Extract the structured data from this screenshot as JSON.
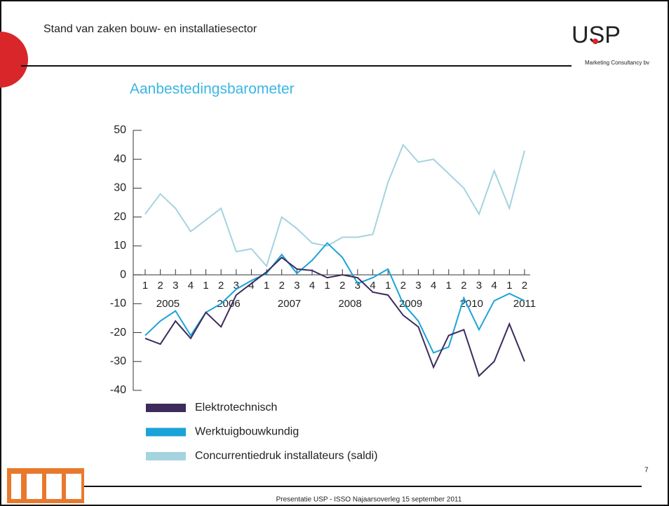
{
  "header": {
    "title": "Stand van zaken bouw- en installatiesector",
    "logo": "USP",
    "logo_subtitle": "Marketing Consultancy bv"
  },
  "chart_data": {
    "type": "line",
    "title": "Aanbestedingsbarometer",
    "categories": [
      "1",
      "2",
      "3",
      "4",
      "1",
      "2",
      "3",
      "4",
      "1",
      "2",
      "3",
      "4",
      "1",
      "2",
      "3",
      "4",
      "1",
      "2",
      "3",
      "4",
      "1",
      "2",
      "3",
      "4",
      "1",
      "2"
    ],
    "years": [
      "2005",
      "2006",
      "2007",
      "2008",
      "2009",
      "2010",
      "2011"
    ],
    "ylim": [
      -40,
      50
    ],
    "yticks": [
      -40,
      -30,
      -20,
      -10,
      0,
      10,
      20,
      30,
      40,
      50
    ],
    "series": [
      {
        "name": "Elektrotechnisch",
        "color": "#3d2b5c",
        "values": [
          -22,
          -24,
          -16,
          -22,
          -13,
          -18,
          -7,
          -3,
          1,
          6,
          2,
          1.5,
          -1,
          0,
          -1,
          -6,
          -7,
          -14,
          -18,
          -32,
          -21,
          -19,
          -35,
          -30,
          -17,
          -30
        ]
      },
      {
        "name": "Werktuigbouwkundig",
        "color": "#1ba3d8",
        "values": [
          -21,
          -16,
          -12.5,
          -21,
          -13,
          -10,
          -5,
          -2,
          0.5,
          7,
          0.5,
          5,
          11,
          6,
          -3,
          -1,
          2,
          -10,
          -16,
          -27,
          -25,
          -8,
          -19,
          -9,
          -6.5,
          -9
        ]
      },
      {
        "name": "Concurrentiedruk installateurs (saldi)",
        "color": "#a5d3df",
        "values": [
          21,
          28,
          23,
          15,
          19,
          23,
          8,
          9,
          3,
          20,
          16,
          11,
          10,
          13,
          13,
          14,
          32,
          45,
          39,
          40,
          35,
          30,
          21,
          36,
          23,
          43
        ]
      }
    ]
  },
  "footer": {
    "text": "Presentatie USP - ISSO Najaarsoverleg 15 september 2011",
    "page_number": "7"
  }
}
